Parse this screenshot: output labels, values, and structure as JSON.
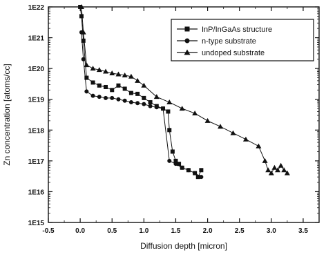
{
  "chart_data": {
    "type": "scatter",
    "title": "",
    "xlabel": "Diffusion depth [micron]",
    "ylabel": "Zn concentration [atoms/cc]",
    "xlim": [
      -0.5,
      3.75
    ],
    "ylim_log10": [
      15,
      22
    ],
    "y_scale": "log",
    "grid": false,
    "legend_position": "top-right",
    "x_ticks": [
      "-0.5",
      "0.0",
      "0.5",
      "1.0",
      "1.5",
      "2.0",
      "2.5",
      "3.0",
      "3.5"
    ],
    "x_tick_values": [
      -0.5,
      0.0,
      0.5,
      1.0,
      1.5,
      2.0,
      2.5,
      3.0,
      3.5
    ],
    "y_ticks": [
      "1E15",
      "1E16",
      "1E17",
      "1E18",
      "1E19",
      "1E20",
      "1E21",
      "1E22"
    ],
    "y_tick_values": [
      1000000000000000.0,
      1e+16,
      1e+17,
      1e+18,
      1e+19,
      1e+20,
      1e+21,
      1e+22
    ],
    "series": [
      {
        "name": "InP/InGaAs structure",
        "marker": "square",
        "x": [
          0.0,
          0.02,
          0.05,
          0.1,
          0.2,
          0.3,
          0.4,
          0.5,
          0.6,
          0.7,
          0.8,
          0.9,
          1.0,
          1.1,
          1.2,
          1.3,
          1.38,
          1.4,
          1.45,
          1.5,
          1.55,
          1.6,
          1.7,
          1.8,
          1.85,
          1.9
        ],
        "y": [
          1e+22,
          5e+21,
          8e+20,
          5e+19,
          3.5e+19,
          2.8e+19,
          2.5e+19,
          2e+19,
          2.8e+19,
          2.2e+19,
          1.6e+19,
          1.5e+19,
          1.1e+19,
          8e+18,
          6e+18,
          5e+18,
          4e+18,
          1e+18,
          2e+17,
          1e+17,
          8e+16,
          6e+16,
          5e+16,
          4e+16,
          3e+16,
          5e+16
        ]
      },
      {
        "name": "n-type substrate",
        "marker": "circle",
        "x": [
          0.02,
          0.05,
          0.1,
          0.2,
          0.3,
          0.4,
          0.5,
          0.6,
          0.7,
          0.8,
          0.9,
          1.0,
          1.1,
          1.2,
          1.3,
          1.4,
          1.5,
          1.6,
          1.7,
          1.8,
          1.9
        ],
        "y": [
          1.5e+21,
          2e+20,
          1.8e+19,
          1.3e+19,
          1.2e+19,
          1.1e+19,
          1.1e+19,
          1e+19,
          9e+18,
          8e+18,
          7.5e+18,
          7e+18,
          6e+18,
          5.5e+18,
          5e+18,
          1e+17,
          8e+16,
          6e+16,
          5e+16,
          4e+16,
          3e+16
        ]
      },
      {
        "name": "undoped substrate",
        "marker": "triangle",
        "x": [
          0.02,
          0.05,
          0.1,
          0.2,
          0.3,
          0.4,
          0.5,
          0.6,
          0.7,
          0.8,
          0.9,
          1.0,
          1.2,
          1.4,
          1.6,
          1.8,
          2.0,
          2.2,
          2.4,
          2.6,
          2.8,
          2.9,
          2.95,
          3.0,
          3.05,
          3.1,
          3.15,
          3.2,
          3.25
        ],
        "y": [
          1e+22,
          1.5e+21,
          1.3e+20,
          1e+20,
          9e+19,
          8e+19,
          7e+19,
          6.5e+19,
          6e+19,
          5.5e+19,
          4e+19,
          2.8e+19,
          1.2e+19,
          8e+18,
          5e+18,
          3.5e+18,
          2e+18,
          1.3e+18,
          8e+17,
          5e+17,
          3e+17,
          1e+17,
          5e+16,
          4e+16,
          6e+16,
          5e+16,
          7e+16,
          5e+16,
          4e+16
        ]
      }
    ]
  }
}
